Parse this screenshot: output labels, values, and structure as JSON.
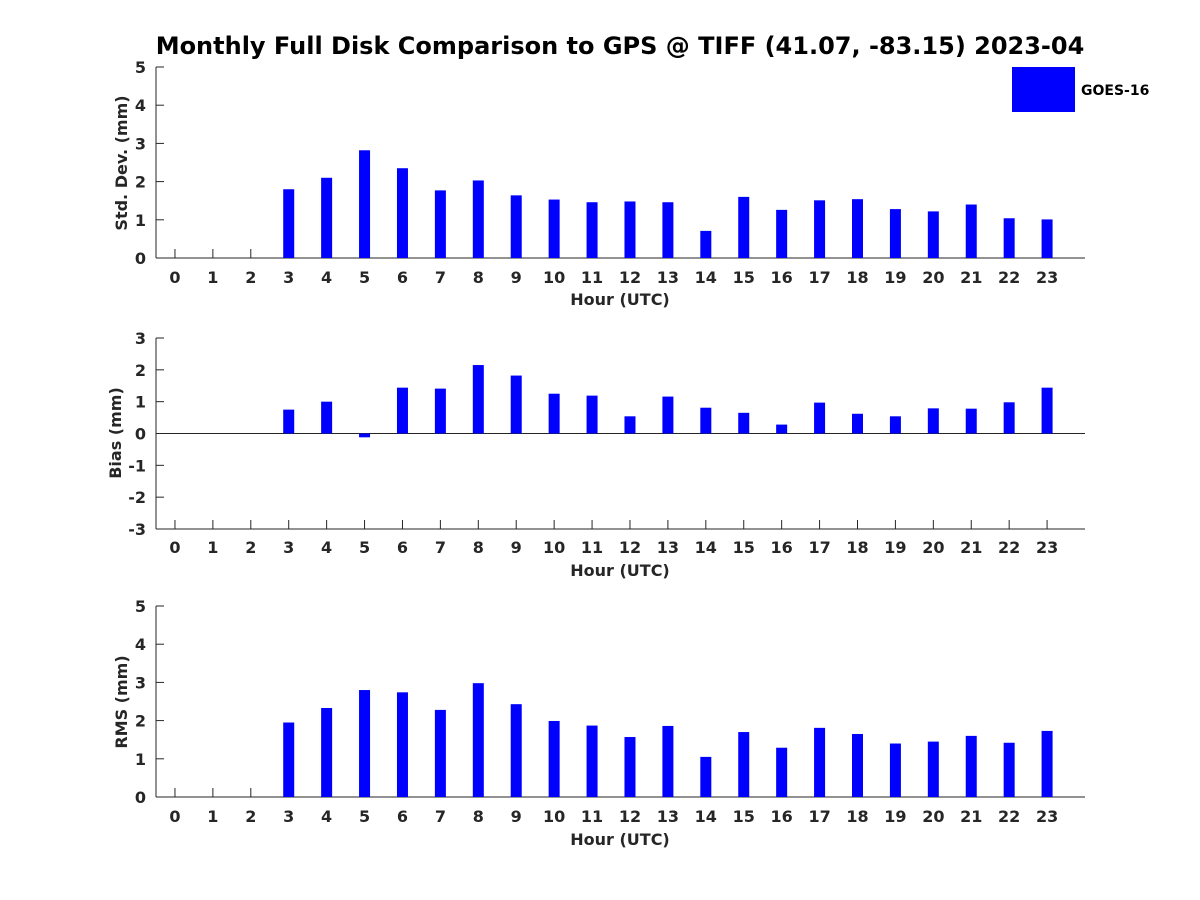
{
  "title": "Monthly Full Disk Comparison to GPS @ TIFF (41.07, -83.15) 2023-04",
  "legend": {
    "label": "GOES-16",
    "color": "#0000ff"
  },
  "chart_data": [
    {
      "type": "bar",
      "ylabel": "Std. Dev. (mm)",
      "xlabel": "Hour (UTC)",
      "ylim": [
        0,
        5
      ],
      "yticks": [
        "0",
        "1",
        "2",
        "3",
        "4",
        "5"
      ],
      "categories": [
        "0",
        "1",
        "2",
        "3",
        "4",
        "5",
        "6",
        "7",
        "8",
        "9",
        "10",
        "11",
        "12",
        "13",
        "14",
        "15",
        "16",
        "17",
        "18",
        "19",
        "20",
        "21",
        "22",
        "23"
      ],
      "series": [
        {
          "name": "GOES-16",
          "values": [
            null,
            null,
            null,
            1.8,
            2.1,
            2.82,
            2.35,
            1.77,
            2.03,
            1.64,
            1.53,
            1.46,
            1.48,
            1.46,
            0.71,
            1.6,
            1.26,
            1.51,
            1.54,
            1.28,
            1.22,
            1.4,
            1.04,
            1.01
          ]
        }
      ]
    },
    {
      "type": "bar",
      "ylabel": "Bias (mm)",
      "xlabel": "Hour (UTC)",
      "ylim": [
        -3,
        3
      ],
      "yticks": [
        "-3",
        "-2",
        "-1",
        "0",
        "1",
        "2",
        "3"
      ],
      "categories": [
        "0",
        "1",
        "2",
        "3",
        "4",
        "5",
        "6",
        "7",
        "8",
        "9",
        "10",
        "11",
        "12",
        "13",
        "14",
        "15",
        "16",
        "17",
        "18",
        "19",
        "20",
        "21",
        "22",
        "23"
      ],
      "series": [
        {
          "name": "GOES-16",
          "values": [
            null,
            null,
            null,
            0.75,
            1.0,
            -0.12,
            1.44,
            1.41,
            2.15,
            1.82,
            1.25,
            1.19,
            0.54,
            1.16,
            0.81,
            0.65,
            0.28,
            0.97,
            0.62,
            0.54,
            0.79,
            0.78,
            0.98,
            1.44
          ]
        }
      ]
    },
    {
      "type": "bar",
      "ylabel": "RMS (mm)",
      "xlabel": "Hour (UTC)",
      "ylim": [
        0,
        5
      ],
      "yticks": [
        "0",
        "1",
        "2",
        "3",
        "4",
        "5"
      ],
      "categories": [
        "0",
        "1",
        "2",
        "3",
        "4",
        "5",
        "6",
        "7",
        "8",
        "9",
        "10",
        "11",
        "12",
        "13",
        "14",
        "15",
        "16",
        "17",
        "18",
        "19",
        "20",
        "21",
        "22",
        "23"
      ],
      "series": [
        {
          "name": "GOES-16",
          "values": [
            null,
            null,
            null,
            1.95,
            2.33,
            2.8,
            2.74,
            2.28,
            2.98,
            2.43,
            1.99,
            1.87,
            1.57,
            1.86,
            1.05,
            1.7,
            1.29,
            1.81,
            1.65,
            1.4,
            1.45,
            1.6,
            1.42,
            1.73
          ]
        }
      ]
    }
  ]
}
